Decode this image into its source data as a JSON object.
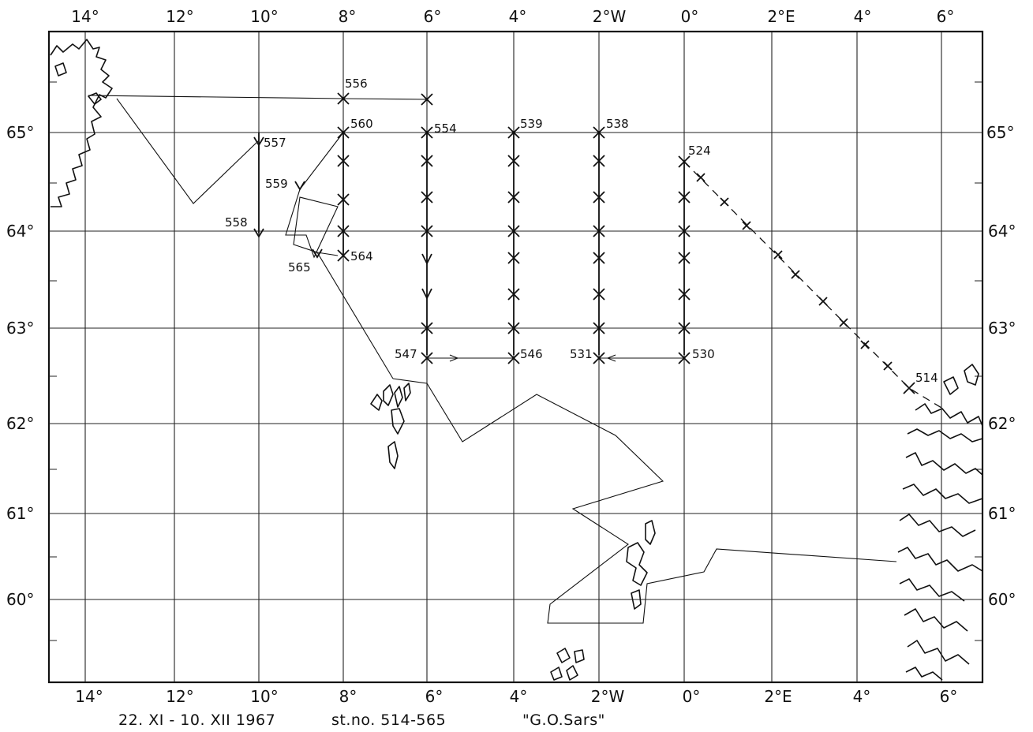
{
  "map": {
    "longitude_labels_top": [
      "14°",
      "12°",
      "10°",
      "8°",
      "6°",
      "4°",
      "2°W",
      "0°",
      "2°E",
      "4°",
      "6°"
    ],
    "longitude_labels_bottom": [
      "14°",
      "12°",
      "10°",
      "8°",
      "6°",
      "4°",
      "2°W",
      "0°",
      "2°E",
      "4°",
      "6°"
    ],
    "latitude_labels_left": [
      "65°",
      "64°",
      "63°",
      "62°",
      "61°",
      "60°"
    ],
    "latitude_labels_right": [
      "65°",
      "64°",
      "63°",
      "62°",
      "61°",
      "60°"
    ],
    "caption": {
      "dates": "22. XI - 10. XII 1967",
      "stations": "st.no. 514-565",
      "vessel": "\"G.O.Sars\""
    },
    "stations": [
      {
        "id": "556",
        "lon": -8,
        "lat": 65.35
      },
      {
        "id": "560",
        "lon": -8,
        "lat": 65.0
      },
      {
        "id": "554",
        "lon": -6,
        "lat": 65.0
      },
      {
        "id": "539",
        "lon": -4,
        "lat": 65.0
      },
      {
        "id": "538",
        "lon": -2,
        "lat": 65.0
      },
      {
        "id": "557",
        "lon": -10,
        "lat": 64.9
      },
      {
        "id": "524",
        "lon": 0,
        "lat": 64.7
      },
      {
        "id": "559",
        "lon": -9,
        "lat": 64.45
      },
      {
        "id": "558",
        "lon": -10,
        "lat": 63.95
      },
      {
        "id": "565",
        "lon": -8.6,
        "lat": 63.75
      },
      {
        "id": "564",
        "lon": -8,
        "lat": 63.75
      },
      {
        "id": "547",
        "lon": -6,
        "lat": 62.7
      },
      {
        "id": "546",
        "lon": -4,
        "lat": 62.7
      },
      {
        "id": "531",
        "lon": -2,
        "lat": 62.7
      },
      {
        "id": "530",
        "lon": 0,
        "lat": 62.7
      },
      {
        "id": "514",
        "lon": 5.2,
        "lat": 62.35
      }
    ]
  }
}
